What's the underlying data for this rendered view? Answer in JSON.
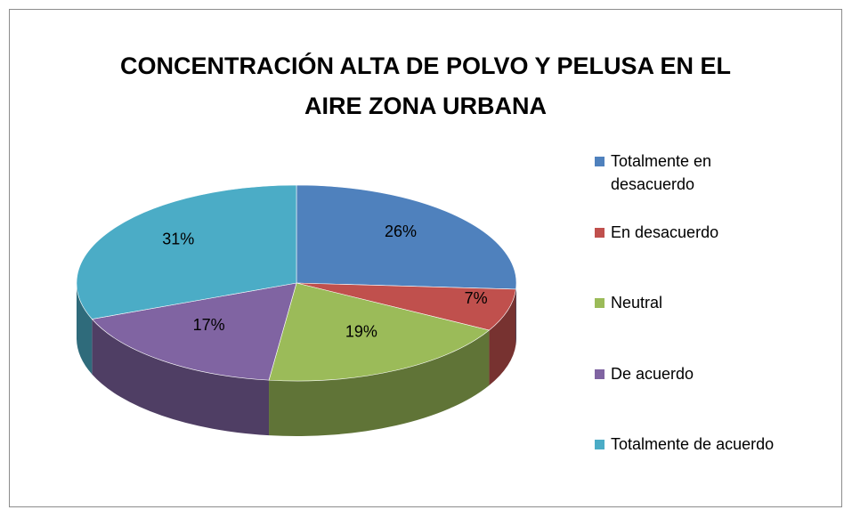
{
  "chart_data": {
    "type": "pie",
    "title": "CONCENTRACIÓN ALTA DE POLVO Y PELUSA EN EL AIRE ZONA URBANA",
    "categories": [
      "Totalmente en desacuerdo",
      "En desacuerdo",
      "Neutral",
      "De acuerdo",
      "Totalmente de acuerdo"
    ],
    "values": [
      26,
      7,
      19,
      17,
      31
    ],
    "value_labels": [
      "26%",
      "7%",
      "19%",
      "17%",
      "31%"
    ],
    "colors": [
      "#4f81bd",
      "#c0504d",
      "#9bbb59",
      "#8064a2",
      "#4bacc6"
    ],
    "legend": "right"
  }
}
